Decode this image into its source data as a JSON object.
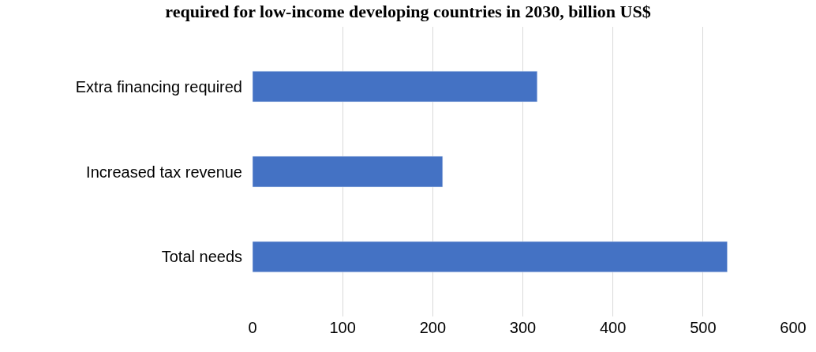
{
  "chart_data": {
    "type": "bar",
    "orientation": "horizontal",
    "title": "required for low-income developing countries in 2030, billion US$",
    "categories": [
      "Extra financing required",
      "Increased tax revenue",
      "Total needs"
    ],
    "values": [
      316,
      211,
      527
    ],
    "color": "#4472c4",
    "xlim": [
      0,
      600
    ],
    "xticks": [
      0,
      100,
      200,
      300,
      400,
      500,
      600
    ],
    "grid": "x"
  }
}
